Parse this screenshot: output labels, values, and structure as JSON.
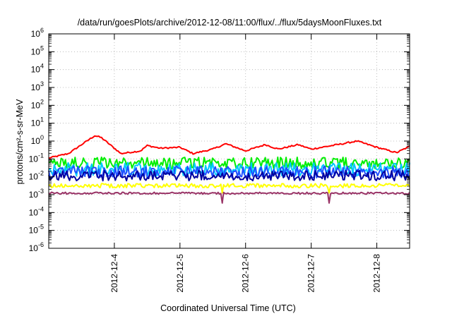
{
  "chart_data": {
    "type": "line",
    "title": "/data/run/goesPlots/archive/2012-12-08/11:00/flux/../flux/5daysMoonFluxes.txt",
    "xlabel": "Coordinated Universal Time (UTC)",
    "ylabel": "protons/cm²-s-sr-MeV",
    "yscale": "log",
    "ylim_exponents": [
      -6,
      6
    ],
    "y_tick_base": "10",
    "y_tick_exponents": [
      "-6",
      "-5",
      "-4",
      "-3",
      "-2",
      "-1",
      "0",
      "1",
      "2",
      "3",
      "4",
      "5",
      "6"
    ],
    "xlim_days": [
      3.0,
      8.5
    ],
    "x_ticks": [
      {
        "day": 4,
        "label": "2012-12-4"
      },
      {
        "day": 5,
        "label": "2012-12-5"
      },
      {
        "day": 6,
        "label": "2012-12-6"
      },
      {
        "day": 7,
        "label": "2012-12-7"
      },
      {
        "day": 8,
        "label": "2012-12-8"
      }
    ],
    "grid": true,
    "legend": "none",
    "series": [
      {
        "color": "#ff0000",
        "base_log": -0.7,
        "envelope": [
          [
            3.0,
            -0.95
          ],
          [
            3.3,
            -0.7
          ],
          [
            3.7,
            0.3
          ],
          [
            3.8,
            0.2
          ],
          [
            4.1,
            -0.7
          ],
          [
            4.4,
            -0.55
          ],
          [
            4.5,
            -0.25
          ],
          [
            4.7,
            -0.4
          ],
          [
            5.0,
            -0.35
          ],
          [
            5.2,
            -0.7
          ],
          [
            5.5,
            -0.45
          ],
          [
            5.7,
            -0.15
          ],
          [
            6.0,
            -0.55
          ],
          [
            6.3,
            -0.2
          ],
          [
            6.5,
            -0.45
          ],
          [
            6.8,
            -0.2
          ],
          [
            7.0,
            -0.45
          ],
          [
            7.4,
            -0.2
          ],
          [
            7.7,
            0.0
          ],
          [
            8.0,
            -0.35
          ],
          [
            8.3,
            -0.65
          ],
          [
            8.5,
            -0.3
          ]
        ],
        "noise": 0.08
      },
      {
        "color": "#00ee00",
        "base_log": -1.25,
        "noise": 0.35
      },
      {
        "color": "#00c8ff",
        "base_log": -1.6,
        "noise": 0.4
      },
      {
        "color": "#2050ff",
        "base_log": -1.75,
        "noise": 0.35
      },
      {
        "color": "#0000a0",
        "base_log": -1.95,
        "noise": 0.3
      },
      {
        "color": "#ffff00",
        "base_log": -2.5,
        "noise": 0.12
      },
      {
        "color": "#993366",
        "base_log": -2.92,
        "noise": 0.06
      }
    ]
  }
}
